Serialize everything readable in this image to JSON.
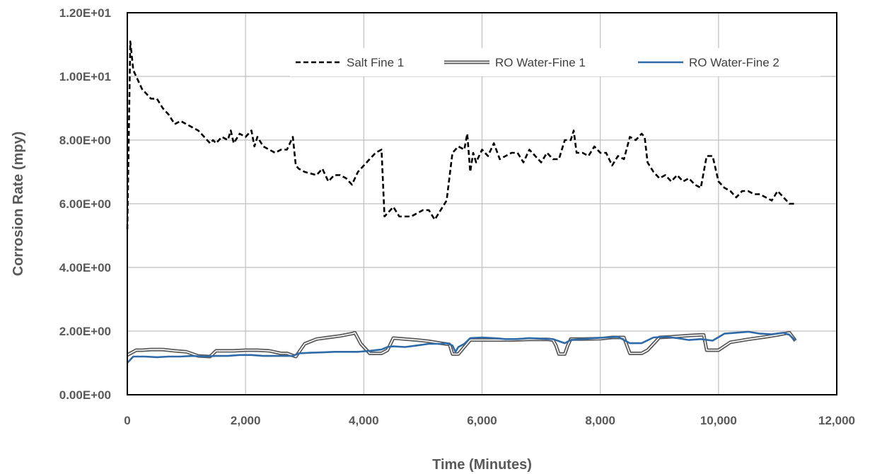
{
  "chart_data": {
    "type": "line",
    "title": "",
    "xlabel": "Time (Minutes)",
    "ylabel": "Corrosion Rate (mpy)",
    "xlim": [
      0,
      12000
    ],
    "ylim": [
      0,
      12
    ],
    "x_ticks": [
      0,
      2000,
      4000,
      6000,
      8000,
      10000,
      12000
    ],
    "x_tick_labels": [
      "0",
      "2,000",
      "4,000",
      "6,000",
      "8,000",
      "10,000",
      "12,000"
    ],
    "y_ticks": [
      0,
      2,
      4,
      6,
      8,
      10,
      12
    ],
    "y_tick_labels": [
      "0.00E+00",
      "2.00E+00",
      "4.00E+00",
      "6.00E+00",
      "8.00E+00",
      "1.00E+01",
      "1.20E+01"
    ],
    "grid": true,
    "legend_position": "top-right",
    "series": [
      {
        "name": "Salt Fine 1",
        "color": "#000000",
        "style": "dashed",
        "x": [
          0,
          50,
          100,
          150,
          250,
          400,
          500,
          600,
          700,
          800,
          900,
          1000,
          1100,
          1200,
          1300,
          1400,
          1450,
          1500,
          1600,
          1700,
          1750,
          1800,
          1900,
          2000,
          2100,
          2150,
          2200,
          2300,
          2400,
          2500,
          2600,
          2700,
          2800,
          2850,
          2900,
          3000,
          3200,
          3300,
          3400,
          3500,
          3600,
          3700,
          3800,
          3900,
          4000,
          4200,
          4300,
          4350,
          4400,
          4500,
          4600,
          4800,
          5000,
          5100,
          5200,
          5300,
          5400,
          5500,
          5600,
          5700,
          5750,
          5800,
          5850,
          5900,
          6000,
          6100,
          6200,
          6300,
          6400,
          6500,
          6600,
          6700,
          6800,
          6900,
          7000,
          7100,
          7200,
          7300,
          7400,
          7500,
          7550,
          7600,
          7700,
          7800,
          7900,
          8000,
          8100,
          8200,
          8300,
          8400,
          8500,
          8600,
          8700,
          8750,
          8800,
          8900,
          9000,
          9100,
          9200,
          9300,
          9400,
          9500,
          9600,
          9700,
          9800,
          9900,
          10000,
          10100,
          10200,
          10300,
          10400,
          10500,
          10600,
          10700,
          10800,
          10900,
          11000,
          11100,
          11200,
          11300
        ],
        "y": [
          5.2,
          11.1,
          10.2,
          10.0,
          9.6,
          9.3,
          9.3,
          9.0,
          8.8,
          8.5,
          8.6,
          8.5,
          8.4,
          8.3,
          8.1,
          7.9,
          8.0,
          7.9,
          8.1,
          8.0,
          8.3,
          7.9,
          8.2,
          8.1,
          8.3,
          7.8,
          8.1,
          7.8,
          7.7,
          7.6,
          7.7,
          7.7,
          8.1,
          7.2,
          7.1,
          7.0,
          6.9,
          7.1,
          6.7,
          6.9,
          6.9,
          6.8,
          6.6,
          7.0,
          7.2,
          7.6,
          7.7,
          5.6,
          5.7,
          5.9,
          5.6,
          5.6,
          5.8,
          5.8,
          5.5,
          5.8,
          6.1,
          7.6,
          7.8,
          7.7,
          8.2,
          7.0,
          7.6,
          7.3,
          7.7,
          7.5,
          7.9,
          7.4,
          7.5,
          7.6,
          7.6,
          7.3,
          7.7,
          7.5,
          7.3,
          7.6,
          7.4,
          7.4,
          8.0,
          8.0,
          8.3,
          7.6,
          7.6,
          7.5,
          7.8,
          7.6,
          7.6,
          7.2,
          7.5,
          7.4,
          8.1,
          8.0,
          8.2,
          8.1,
          7.3,
          7.0,
          6.8,
          6.9,
          6.7,
          6.9,
          6.7,
          6.8,
          6.6,
          6.5,
          7.5,
          7.5,
          6.7,
          6.5,
          6.4,
          6.2,
          6.4,
          6.4,
          6.3,
          6.3,
          6.2,
          6.1,
          6.4,
          6.2,
          6.0,
          6.0
        ]
      },
      {
        "name": "RO Water-Fine 1",
        "color": "#595959",
        "style": "double",
        "x": [
          0,
          50,
          150,
          250,
          400,
          600,
          800,
          1000,
          1200,
          1400,
          1500,
          1600,
          1800,
          2000,
          2200,
          2400,
          2600,
          2700,
          2850,
          3000,
          3200,
          3400,
          3600,
          3800,
          3850,
          3950,
          4100,
          4300,
          4400,
          4500,
          4700,
          4900,
          5100,
          5300,
          5450,
          5500,
          5600,
          5700,
          5800,
          6000,
          6200,
          6500,
          6800,
          7100,
          7200,
          7250,
          7300,
          7400,
          7450,
          7500,
          7700,
          8000,
          8200,
          8400,
          8450,
          8500,
          8700,
          8800,
          9000,
          9200,
          9500,
          9700,
          9750,
          9800,
          10000,
          10200,
          10500,
          10800,
          11000,
          11200,
          11300
        ],
        "y": [
          1.25,
          1.3,
          1.4,
          1.4,
          1.42,
          1.42,
          1.38,
          1.35,
          1.22,
          1.2,
          1.38,
          1.38,
          1.38,
          1.4,
          1.4,
          1.38,
          1.3,
          1.3,
          1.2,
          1.6,
          1.75,
          1.8,
          1.85,
          1.92,
          1.95,
          1.6,
          1.3,
          1.3,
          1.4,
          1.78,
          1.75,
          1.72,
          1.68,
          1.62,
          1.58,
          1.28,
          1.28,
          1.5,
          1.72,
          1.72,
          1.72,
          1.72,
          1.74,
          1.74,
          1.72,
          1.55,
          1.28,
          1.28,
          1.55,
          1.75,
          1.75,
          1.76,
          1.8,
          1.8,
          1.55,
          1.3,
          1.3,
          1.4,
          1.8,
          1.82,
          1.86,
          1.88,
          1.88,
          1.4,
          1.4,
          1.65,
          1.74,
          1.82,
          1.88,
          1.95,
          1.7
        ]
      },
      {
        "name": "RO Water-Fine 2",
        "color": "#2e6aa8",
        "style": "solid",
        "x": [
          0,
          100,
          300,
          500,
          700,
          900,
          1100,
          1300,
          1500,
          1700,
          1900,
          2100,
          2300,
          2500,
          2700,
          2800,
          2900,
          3100,
          3300,
          3500,
          3700,
          3900,
          4100,
          4300,
          4400,
          4500,
          4700,
          4900,
          5100,
          5300,
          5400,
          5500,
          5550,
          5600,
          5700,
          5800,
          6000,
          6200,
          6400,
          6600,
          6800,
          7000,
          7200,
          7400,
          7500,
          7700,
          7900,
          8100,
          8300,
          8500,
          8700,
          8900,
          9100,
          9300,
          9500,
          9700,
          9900,
          10100,
          10300,
          10500,
          10700,
          10900,
          11100,
          11200,
          11300
        ],
        "y": [
          1.0,
          1.2,
          1.2,
          1.18,
          1.2,
          1.2,
          1.22,
          1.2,
          1.22,
          1.22,
          1.25,
          1.25,
          1.22,
          1.22,
          1.22,
          1.22,
          1.3,
          1.32,
          1.33,
          1.35,
          1.35,
          1.35,
          1.38,
          1.42,
          1.5,
          1.52,
          1.5,
          1.55,
          1.6,
          1.6,
          1.62,
          1.55,
          1.35,
          1.5,
          1.6,
          1.78,
          1.8,
          1.78,
          1.75,
          1.75,
          1.78,
          1.76,
          1.75,
          1.62,
          1.72,
          1.75,
          1.78,
          1.8,
          1.82,
          1.62,
          1.62,
          1.8,
          1.82,
          1.78,
          1.72,
          1.75,
          1.7,
          1.92,
          1.95,
          1.98,
          1.92,
          1.9,
          1.95,
          1.88,
          1.7
        ]
      }
    ]
  }
}
